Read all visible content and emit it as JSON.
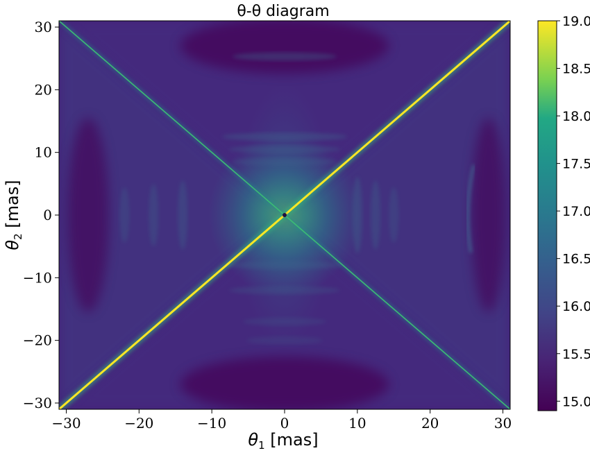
{
  "chart_data": {
    "type": "heatmap",
    "title": "θ-θ diagram",
    "xlabel": "θ1 [mas]",
    "ylabel": "θ2 [mas]",
    "xlim": [
      -31,
      31
    ],
    "ylim": [
      -31,
      31
    ],
    "xticks": [
      -30,
      -20,
      -10,
      0,
      10,
      20,
      30
    ],
    "yticks": [
      -30,
      -20,
      -10,
      0,
      10,
      20,
      30
    ],
    "colormap": "viridis",
    "colorbar": {
      "min": 14.9,
      "max": 19.0,
      "ticks": [
        "15.0",
        "15.5",
        "16.0",
        "16.5",
        "17.0",
        "17.5",
        "18.0",
        "18.5",
        "19.0"
      ]
    },
    "features": [
      {
        "type": "line",
        "from": [
          -31,
          -31
        ],
        "to": [
          31,
          31
        ],
        "value": 19.0
      },
      {
        "type": "line",
        "from": [
          -31,
          31
        ],
        "to": [
          31,
          -31
        ],
        "value": 17.2
      }
    ],
    "background_value": 15.1,
    "colors": {
      "low": "#440154",
      "mid": "#3b528b",
      "teal": "#21918c",
      "green": "#5ec962",
      "high": "#fde725"
    }
  }
}
